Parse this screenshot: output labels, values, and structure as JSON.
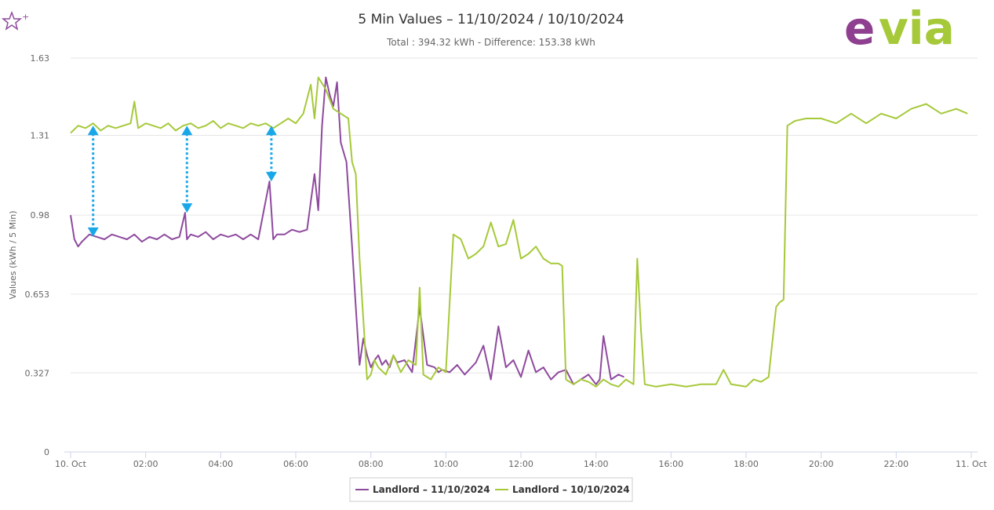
{
  "header": {
    "favorite_icon": "star-plus-icon",
    "logo_text": "evia",
    "logo_colors": {
      "e": "#8e3f8f",
      "via": "#a6c93a"
    }
  },
  "chart_data": {
    "type": "line",
    "title": "5 Min Values – 11/10/2024 / 10/10/2024",
    "subtitle": "Total : 394.32 kWh - Difference: 153.38 kWh",
    "ylabel": "Values (kWh / 5 Min)",
    "xlabel": "",
    "ylim": [
      0,
      1.63
    ],
    "yticks": [
      "0",
      "0.327",
      "0.653",
      "0.98",
      "1.31",
      "1.63"
    ],
    "xlim": [
      0,
      24
    ],
    "xticks": [
      {
        "v": 0,
        "label": "10. Oct"
      },
      {
        "v": 2,
        "label": "02:00"
      },
      {
        "v": 4,
        "label": "04:00"
      },
      {
        "v": 6,
        "label": "06:00"
      },
      {
        "v": 8,
        "label": "08:00"
      },
      {
        "v": 10,
        "label": "10:00"
      },
      {
        "v": 12,
        "label": "12:00"
      },
      {
        "v": 14,
        "label": "14:00"
      },
      {
        "v": 16,
        "label": "16:00"
      },
      {
        "v": 18,
        "label": "18:00"
      },
      {
        "v": 20,
        "label": "20:00"
      },
      {
        "v": 22,
        "label": "22:00"
      },
      {
        "v": 24,
        "label": "11. Oct"
      }
    ],
    "grid": true,
    "legend_position": "bottom-center",
    "series": [
      {
        "name": "Landlord – 11/10/2024",
        "color": "#8e4a9e",
        "x": [
          0,
          0.1,
          0.2,
          0.3,
          0.5,
          0.7,
          0.9,
          1.1,
          1.3,
          1.5,
          1.7,
          1.9,
          2.1,
          2.3,
          2.5,
          2.7,
          2.9,
          3.05,
          3.1,
          3.2,
          3.4,
          3.6,
          3.8,
          4.0,
          4.2,
          4.4,
          4.6,
          4.8,
          5.0,
          5.15,
          5.3,
          5.4,
          5.5,
          5.7,
          5.9,
          6.1,
          6.3,
          6.5,
          6.6,
          6.7,
          6.8,
          6.9,
          7.0,
          7.1,
          7.2,
          7.35,
          7.5,
          7.6,
          7.7,
          7.8,
          7.9,
          8.0,
          8.1,
          8.2,
          8.3,
          8.4,
          8.5,
          8.6,
          8.7,
          8.9,
          9.1,
          9.3,
          9.5,
          9.7,
          9.8,
          9.9,
          10.1,
          10.3,
          10.5,
          10.8,
          11.0,
          11.2,
          11.4,
          11.6,
          11.8,
          12.0,
          12.2,
          12.4,
          12.6,
          12.8,
          13.0,
          13.2,
          13.4,
          13.6,
          13.8,
          14.0,
          14.1,
          14.2,
          14.4,
          14.6,
          14.75
        ],
        "values": [
          0.98,
          0.88,
          0.85,
          0.87,
          0.9,
          0.89,
          0.88,
          0.9,
          0.89,
          0.88,
          0.9,
          0.87,
          0.89,
          0.88,
          0.9,
          0.88,
          0.89,
          0.99,
          0.88,
          0.9,
          0.89,
          0.91,
          0.88,
          0.9,
          0.89,
          0.9,
          0.88,
          0.9,
          0.88,
          1.0,
          1.12,
          0.88,
          0.9,
          0.9,
          0.92,
          0.91,
          0.92,
          1.15,
          1.0,
          1.35,
          1.55,
          1.48,
          1.43,
          1.53,
          1.28,
          1.2,
          0.85,
          0.6,
          0.36,
          0.47,
          0.4,
          0.35,
          0.38,
          0.4,
          0.36,
          0.38,
          0.35,
          0.4,
          0.37,
          0.38,
          0.33,
          0.6,
          0.36,
          0.35,
          0.33,
          0.34,
          0.33,
          0.36,
          0.32,
          0.37,
          0.44,
          0.3,
          0.52,
          0.35,
          0.38,
          0.31,
          0.42,
          0.33,
          0.35,
          0.3,
          0.33,
          0.34,
          0.28,
          0.3,
          0.32,
          0.28,
          0.3,
          0.48,
          0.3,
          0.32,
          0.31
        ]
      },
      {
        "name": "Landlord – 10/10/2024",
        "color": "#a6c93a",
        "x": [
          0,
          0.2,
          0.4,
          0.6,
          0.8,
          1.0,
          1.2,
          1.4,
          1.6,
          1.7,
          1.8,
          2.0,
          2.2,
          2.4,
          2.6,
          2.8,
          3.0,
          3.2,
          3.4,
          3.6,
          3.8,
          4.0,
          4.2,
          4.4,
          4.6,
          4.8,
          5.0,
          5.2,
          5.4,
          5.6,
          5.8,
          6.0,
          6.2,
          6.4,
          6.5,
          6.6,
          6.8,
          7.0,
          7.2,
          7.4,
          7.5,
          7.6,
          7.7,
          7.8,
          7.9,
          8.0,
          8.1,
          8.2,
          8.4,
          8.6,
          8.8,
          9.0,
          9.2,
          9.3,
          9.4,
          9.6,
          9.8,
          10.0,
          10.2,
          10.4,
          10.6,
          10.8,
          11.0,
          11.2,
          11.4,
          11.6,
          11.8,
          12.0,
          12.2,
          12.4,
          12.6,
          12.8,
          13.0,
          13.1,
          13.2,
          13.4,
          13.6,
          13.8,
          14.0,
          14.2,
          14.4,
          14.6,
          14.8,
          15.0,
          15.1,
          15.2,
          15.3,
          15.6,
          16.0,
          16.4,
          16.8,
          17.2,
          17.4,
          17.6,
          18.0,
          18.2,
          18.4,
          18.6,
          18.8,
          18.9,
          19.0,
          19.1,
          19.3,
          19.6,
          20.0,
          20.4,
          20.8,
          21.2,
          21.6,
          22.0,
          22.4,
          22.8,
          23.2,
          23.6,
          23.9
        ],
        "values": [
          1.32,
          1.35,
          1.34,
          1.36,
          1.33,
          1.35,
          1.34,
          1.35,
          1.36,
          1.45,
          1.34,
          1.36,
          1.35,
          1.34,
          1.36,
          1.33,
          1.35,
          1.36,
          1.34,
          1.35,
          1.37,
          1.34,
          1.36,
          1.35,
          1.34,
          1.36,
          1.35,
          1.36,
          1.34,
          1.36,
          1.38,
          1.36,
          1.4,
          1.52,
          1.38,
          1.55,
          1.5,
          1.42,
          1.4,
          1.38,
          1.2,
          1.15,
          0.8,
          0.55,
          0.3,
          0.32,
          0.38,
          0.35,
          0.32,
          0.4,
          0.33,
          0.38,
          0.36,
          0.68,
          0.32,
          0.3,
          0.35,
          0.33,
          0.9,
          0.88,
          0.8,
          0.82,
          0.85,
          0.95,
          0.85,
          0.86,
          0.96,
          0.8,
          0.82,
          0.85,
          0.8,
          0.78,
          0.78,
          0.77,
          0.3,
          0.28,
          0.3,
          0.29,
          0.27,
          0.3,
          0.28,
          0.27,
          0.3,
          0.28,
          0.8,
          0.5,
          0.28,
          0.27,
          0.28,
          0.27,
          0.28,
          0.28,
          0.34,
          0.28,
          0.27,
          0.3,
          0.29,
          0.31,
          0.6,
          0.62,
          0.63,
          1.35,
          1.37,
          1.38,
          1.38,
          1.36,
          1.4,
          1.36,
          1.4,
          1.38,
          1.42,
          1.44,
          1.4,
          1.42,
          1.4
        ]
      }
    ],
    "annotations": [
      {
        "type": "double-arrow",
        "x": 0.6,
        "y1": 1.35,
        "y2": 0.89,
        "color": "#1aa7e8"
      },
      {
        "type": "double-arrow",
        "x": 3.1,
        "y1": 1.35,
        "y2": 0.99,
        "color": "#1aa7e8"
      },
      {
        "type": "double-arrow",
        "x": 5.35,
        "y1": 1.35,
        "y2": 1.12,
        "color": "#1aa7e8"
      }
    ]
  }
}
